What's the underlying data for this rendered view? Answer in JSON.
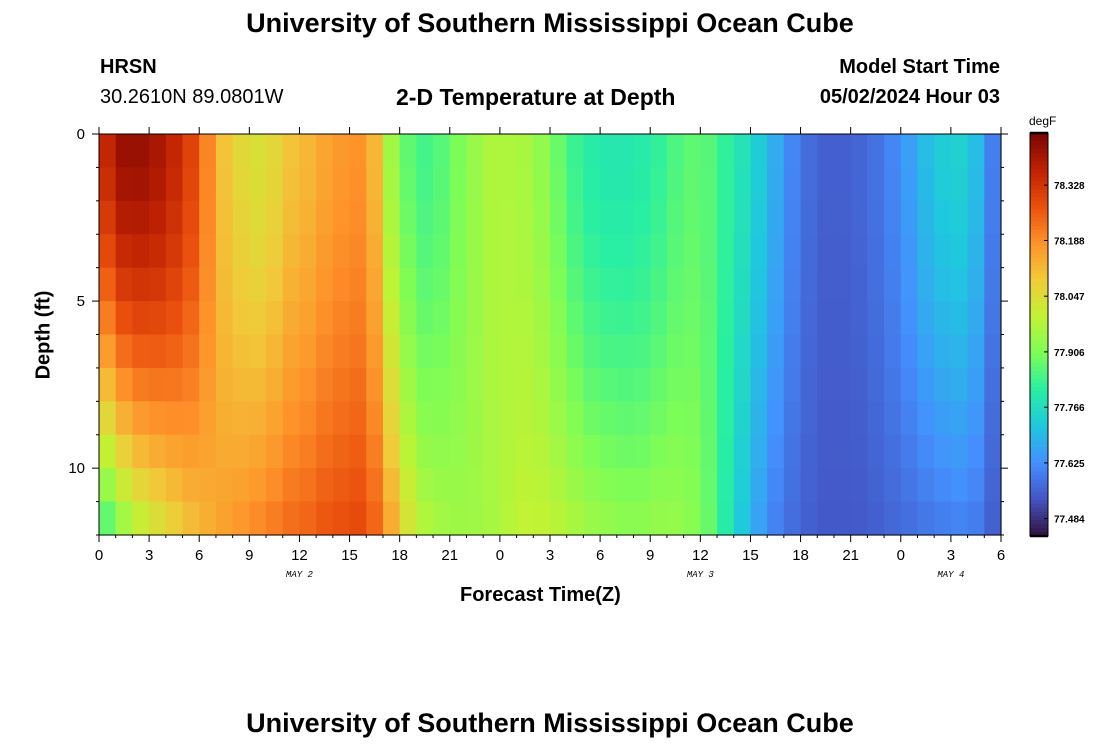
{
  "header": {
    "title": "University of Southern Mississippi Ocean Cube",
    "station": "HRSN",
    "coords": "30.2610N  89.0801W",
    "subtitle": "2-D Temperature at Depth",
    "model_start_label": "Model Start Time",
    "model_start_value": "05/02/2024 Hour 03"
  },
  "footer": {
    "title": "University of Southern Mississippi Ocean Cube"
  },
  "colorbar": {
    "unit": "degF",
    "ticks": [
      "78.328",
      "78.188",
      "78.047",
      "77.906",
      "77.766",
      "77.625",
      "77.484"
    ],
    "colors": [
      "#30123b",
      "#4454c4",
      "#4490fe",
      "#1fc8de",
      "#29efa2",
      "#7efd56",
      "#c1f334",
      "#f1ca3a",
      "#fe922a",
      "#ea4f0d",
      "#be2102",
      "#7a0403"
    ]
  },
  "chart_data": {
    "type": "heatmap",
    "title": "2-D Temperature at Depth",
    "xlabel": "Forecast Time(Z)",
    "ylabel": "Depth (ft)",
    "x_tick_labels": [
      "0",
      "3",
      "6",
      "9",
      "12",
      "15",
      "18",
      "21",
      "0",
      "3",
      "6",
      "9",
      "12",
      "15",
      "18",
      "21",
      "0",
      "3",
      "6"
    ],
    "x_range_hours": [
      0,
      54
    ],
    "day_labels": [
      {
        "label": "MAY 2",
        "hour": 12
      },
      {
        "label": "MAY 3",
        "hour": 36
      },
      {
        "label": "MAY 4",
        "hour": 51
      }
    ],
    "y_ticks": [
      0,
      5,
      10
    ],
    "y_range_ft": [
      0,
      12
    ],
    "value_range_degF": [
      77.44,
      78.46
    ],
    "time_step_hours": 1,
    "depth_step_ft": 1,
    "surface_profile_degF": [
      78.36,
      78.42,
      78.42,
      78.4,
      78.36,
      78.3,
      78.2,
      78.1,
      78.06,
      78.04,
      78.06,
      78.1,
      78.12,
      78.15,
      78.17,
      78.18,
      78.12,
      77.95,
      77.87,
      77.84,
      77.86,
      77.9,
      77.94,
      77.97,
      77.97,
      77.96,
      77.93,
      77.88,
      77.83,
      77.8,
      77.79,
      77.79,
      77.8,
      77.82,
      77.85,
      77.87,
      77.86,
      77.82,
      77.78,
      77.73,
      77.67,
      77.61,
      77.57,
      77.55,
      77.55,
      77.56,
      77.58,
      77.61,
      77.65,
      77.7,
      77.73,
      77.74,
      77.7,
      77.6
    ],
    "bottom_profile_degF": [
      77.84,
      77.92,
      77.98,
      78.02,
      78.06,
      78.1,
      78.13,
      78.16,
      78.18,
      78.2,
      78.22,
      78.24,
      78.25,
      78.27,
      78.28,
      78.29,
      78.25,
      78.15,
      78.04,
      77.98,
      77.96,
      77.95,
      77.95,
      77.96,
      77.98,
      78.0,
      78.0,
      77.99,
      77.97,
      77.95,
      77.94,
      77.93,
      77.93,
      77.94,
      77.94,
      77.92,
      77.88,
      77.8,
      77.72,
      77.65,
      77.6,
      77.57,
      77.55,
      77.54,
      77.54,
      77.54,
      77.55,
      77.56,
      77.57,
      77.58,
      77.59,
      77.6,
      77.59,
      77.55
    ]
  }
}
